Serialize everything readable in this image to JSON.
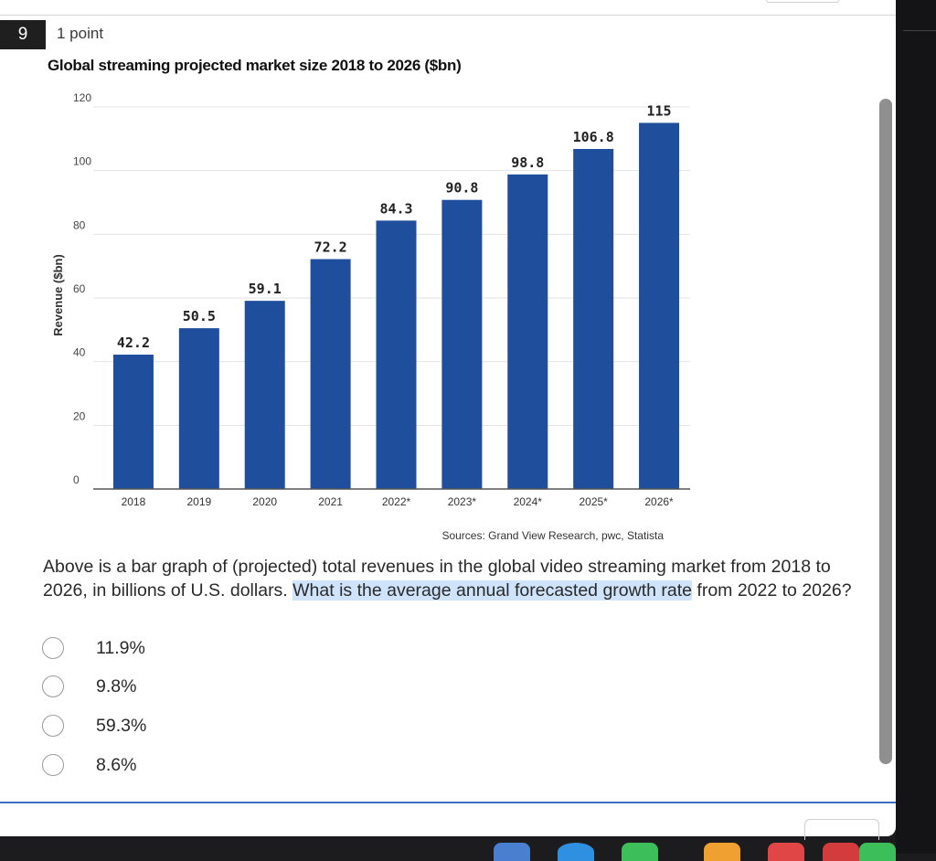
{
  "question": {
    "number": "9",
    "points": "1 point",
    "text_before": "Above is a bar graph of (projected) total revenues in the global video streaming market from 2018 to 2026, in billions of U.S. dollars. ",
    "text_highlighted": "What is the average annual forecasted growth rate",
    "text_after": " from 2022 to 2026?",
    "options": [
      "11.9%",
      "9.8%",
      "59.3%",
      "8.6%"
    ]
  },
  "chart_data": {
    "type": "bar",
    "title": "Global streaming projected market size 2018 to 2026 ($bn)",
    "ylabel": "Revenue ($bn)",
    "xlabel": "",
    "categories": [
      "2018",
      "2019",
      "2020",
      "2021",
      "2022*",
      "2023*",
      "2024*",
      "2025*",
      "2026*"
    ],
    "values": [
      42.2,
      50.5,
      59.1,
      72.2,
      84.3,
      90.8,
      98.8,
      106.8,
      115
    ],
    "value_labels": [
      "42.2",
      "50.5",
      "59.1",
      "72.2",
      "84.3",
      "90.8",
      "98.8",
      "106.8",
      "115"
    ],
    "yticks": [
      "0",
      "20",
      "40",
      "60",
      "80",
      "100",
      "120"
    ],
    "ylim": [
      0,
      120
    ],
    "grid": true,
    "bar_color": "#1f4e9c",
    "source": "Sources: Grand View Research, pwc, Statista"
  },
  "colors": {
    "accent": "#3a6fc4",
    "highlight": "#cfe3fb",
    "question_badge": "#1f1f1f"
  }
}
